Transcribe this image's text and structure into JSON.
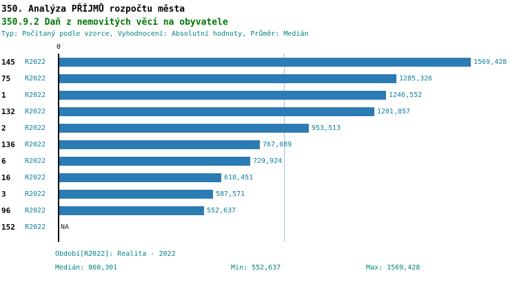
{
  "header": {
    "title": "350. Analýza PŘÍJMŮ rozpočtu města",
    "subtitle": "350.9.2 Daň z nemovitých věcí na obyvatele",
    "meta": "Typ: Počítaný podle vzorce, Vyhodnocení: Absolutní hodnoty, Průměr: Medián"
  },
  "chart_data": {
    "type": "bar",
    "orientation": "horizontal",
    "zero_label": "0",
    "max_value": 1569.428,
    "median_value": 860.301,
    "rows": [
      {
        "code": "145",
        "period": "R2022",
        "value": 1569.428,
        "label": "1569,428"
      },
      {
        "code": "75",
        "period": "R2022",
        "value": 1285.326,
        "label": "1285,326"
      },
      {
        "code": "1",
        "period": "R2022",
        "value": 1246.552,
        "label": "1246,552"
      },
      {
        "code": "132",
        "period": "R2022",
        "value": 1201.857,
        "label": "1201,857"
      },
      {
        "code": "2",
        "period": "R2022",
        "value": 953.513,
        "label": "953,513"
      },
      {
        "code": "136",
        "period": "R2022",
        "value": 767.089,
        "label": "767,089"
      },
      {
        "code": "6",
        "period": "R2022",
        "value": 729.924,
        "label": "729,924"
      },
      {
        "code": "16",
        "period": "R2022",
        "value": 618.451,
        "label": "618,451"
      },
      {
        "code": "3",
        "period": "R2022",
        "value": 587.571,
        "label": "587,571"
      },
      {
        "code": "96",
        "period": "R2022",
        "value": 552.637,
        "label": "552,637"
      },
      {
        "code": "152",
        "period": "R2022",
        "value": null,
        "label": "NA"
      }
    ]
  },
  "footer": {
    "period_line": "Období[R2022]: Realita - 2022",
    "median": "Medián: 860,301",
    "min": "Min: 552,637",
    "max": "Max: 1569,428"
  },
  "colors": {
    "bar": "#2b7bb4",
    "teal": "#0a7f9c",
    "green": "#007700",
    "median_line": "#9cc2dc",
    "axis": "#000000"
  }
}
